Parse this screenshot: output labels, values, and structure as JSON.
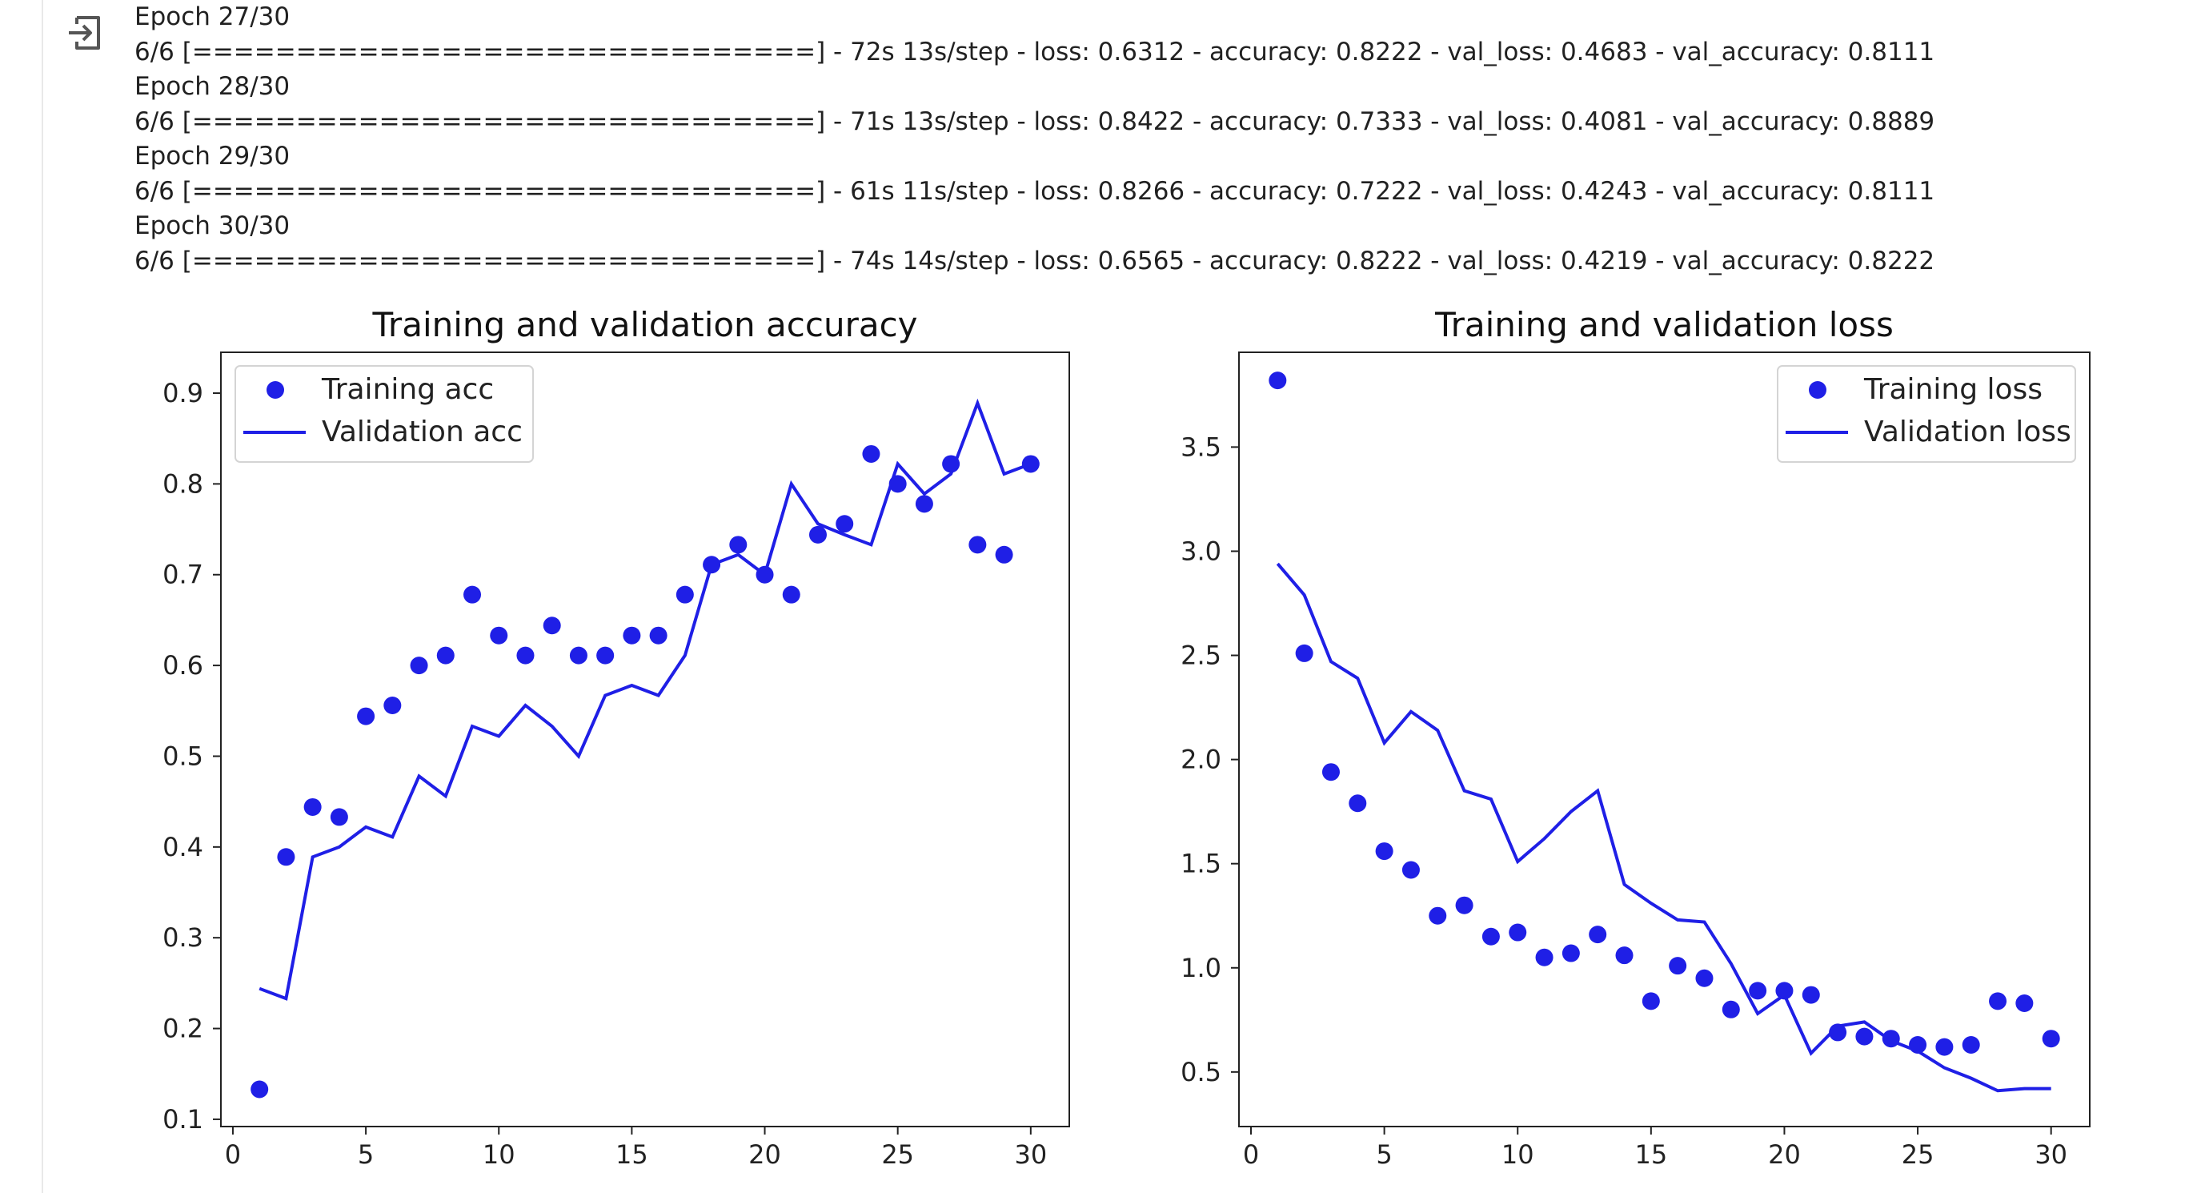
{
  "output": {
    "icon": "output-redirect-icon",
    "log_lines": [
      "Epoch 27/30",
      "6/6 [==============================] - 72s 13s/step - loss: 0.6312 - accuracy: 0.8222 - val_loss: 0.4683 - val_accuracy: 0.8111",
      "Epoch 28/30",
      "6/6 [==============================] - 71s 13s/step - loss: 0.8422 - accuracy: 0.7333 - val_loss: 0.4081 - val_accuracy: 0.8889",
      "Epoch 29/30",
      "6/6 [==============================] - 61s 11s/step - loss: 0.8266 - accuracy: 0.7222 - val_loss: 0.4243 - val_accuracy: 0.8111",
      "Epoch 30/30",
      "6/6 [==============================] - 74s 14s/step - loss: 0.6565 - accuracy: 0.8222 - val_loss: 0.4219 - val_accuracy: 0.8222"
    ]
  },
  "chart_data": [
    {
      "type": "scatter",
      "title": "Training and validation accuracy",
      "xlabel": "",
      "ylabel": "",
      "xlim": [
        -0.45,
        31.45
      ],
      "ylim": [
        0.092,
        0.945
      ],
      "xticks": [
        0,
        5,
        10,
        15,
        20,
        25,
        30
      ],
      "yticks": [
        0.1,
        0.2,
        0.3,
        0.4,
        0.5,
        0.6,
        0.7,
        0.8,
        0.9
      ],
      "ytick_decimals": 1,
      "legend": "upper-left",
      "grid": false,
      "color": "#1f1fe6",
      "x": [
        1,
        2,
        3,
        4,
        5,
        6,
        7,
        8,
        9,
        10,
        11,
        12,
        13,
        14,
        15,
        16,
        17,
        18,
        19,
        20,
        21,
        22,
        23,
        24,
        25,
        26,
        27,
        28,
        29,
        30
      ],
      "series": [
        {
          "name": "Training acc",
          "style": "dots",
          "values": [
            0.133,
            0.389,
            0.444,
            0.433,
            0.544,
            0.556,
            0.6,
            0.611,
            0.678,
            0.633,
            0.611,
            0.644,
            0.611,
            0.611,
            0.633,
            0.633,
            0.678,
            0.711,
            0.733,
            0.7,
            0.678,
            0.744,
            0.756,
            0.833,
            0.8,
            0.778,
            0.822,
            0.733,
            0.722,
            0.822
          ]
        },
        {
          "name": "Validation acc",
          "style": "line",
          "values": [
            0.244,
            0.233,
            0.389,
            0.4,
            0.422,
            0.411,
            0.478,
            0.456,
            0.533,
            0.522,
            0.556,
            0.533,
            0.5,
            0.567,
            0.578,
            0.567,
            0.611,
            0.711,
            0.722,
            0.7,
            0.8,
            0.756,
            0.744,
            0.733,
            0.822,
            0.789,
            0.811,
            0.889,
            0.811,
            0.822
          ]
        }
      ]
    },
    {
      "type": "scatter",
      "title": "Training and validation loss",
      "xlabel": "",
      "ylabel": "",
      "xlim": [
        -0.45,
        31.45
      ],
      "ylim": [
        0.238,
        3.955
      ],
      "xticks": [
        0,
        5,
        10,
        15,
        20,
        25,
        30
      ],
      "yticks": [
        0.5,
        1.0,
        1.5,
        2.0,
        2.5,
        3.0,
        3.5
      ],
      "ytick_decimals": 1,
      "legend": "upper-right",
      "grid": false,
      "color": "#1f1fe6",
      "x": [
        1,
        2,
        3,
        4,
        5,
        6,
        7,
        8,
        9,
        10,
        11,
        12,
        13,
        14,
        15,
        16,
        17,
        18,
        19,
        20,
        21,
        22,
        23,
        24,
        25,
        26,
        27,
        28,
        29,
        30
      ],
      "series": [
        {
          "name": "Training loss",
          "style": "dots",
          "values": [
            3.82,
            2.51,
            1.94,
            1.79,
            1.56,
            1.47,
            1.25,
            1.3,
            1.15,
            1.17,
            1.05,
            1.07,
            1.16,
            1.06,
            0.84,
            1.01,
            0.95,
            0.8,
            0.89,
            0.89,
            0.87,
            0.69,
            0.67,
            0.66,
            0.63,
            0.62,
            0.63,
            0.84,
            0.83,
            0.66
          ]
        },
        {
          "name": "Validation loss",
          "style": "line",
          "values": [
            2.94,
            2.79,
            2.47,
            2.39,
            2.08,
            2.23,
            2.14,
            1.85,
            1.81,
            1.51,
            1.62,
            1.75,
            1.85,
            1.4,
            1.31,
            1.23,
            1.22,
            1.02,
            0.78,
            0.87,
            0.59,
            0.72,
            0.74,
            0.65,
            0.6,
            0.52,
            0.47,
            0.41,
            0.42,
            0.42
          ]
        }
      ]
    }
  ]
}
